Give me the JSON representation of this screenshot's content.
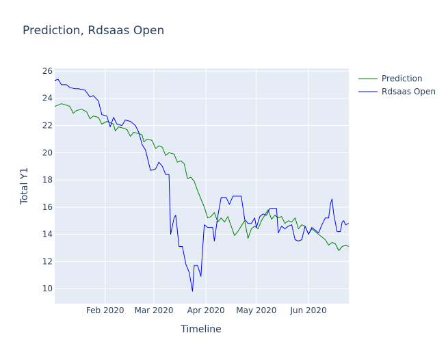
{
  "chart_data": {
    "type": "line",
    "title": "Prediction, Rdsaas Open",
    "xlabel": "Timeline",
    "ylabel": "Total Y1",
    "ylim": [
      8.9,
      26.2
    ],
    "yticks": [
      10,
      12,
      14,
      16,
      18,
      20,
      22,
      24,
      26
    ],
    "xrange": [
      "2020-01-02",
      "2020-06-25"
    ],
    "xticks": [
      {
        "date": "2020-02-01",
        "label": "Feb 2020"
      },
      {
        "date": "2020-03-01",
        "label": "Mar 2020"
      },
      {
        "date": "2020-04-01",
        "label": "Apr 2020"
      },
      {
        "date": "2020-05-01",
        "label": "May 2020"
      },
      {
        "date": "2020-06-01",
        "label": "Jun 2020"
      }
    ],
    "grid": true,
    "legend_position": "top-right",
    "plot_background": "#e5ecf6",
    "series": [
      {
        "name": "Prediction",
        "color": "#008000",
        "points": [
          [
            "2020-01-02",
            23.4
          ],
          [
            "2020-01-04",
            23.5
          ],
          [
            "2020-01-06",
            23.6
          ],
          [
            "2020-01-09",
            23.5
          ],
          [
            "2020-01-11",
            23.4
          ],
          [
            "2020-01-13",
            22.9
          ],
          [
            "2020-01-15",
            23.1
          ],
          [
            "2020-01-18",
            23.2
          ],
          [
            "2020-01-21",
            23.0
          ],
          [
            "2020-01-23",
            22.5
          ],
          [
            "2020-01-25",
            22.7
          ],
          [
            "2020-01-28",
            22.6
          ],
          [
            "2020-01-30",
            22.1
          ],
          [
            "2020-02-02",
            22.3
          ],
          [
            "2020-02-04",
            22.2
          ],
          [
            "2020-02-06",
            22.1
          ],
          [
            "2020-02-07",
            21.6
          ],
          [
            "2020-02-09",
            21.9
          ],
          [
            "2020-02-12",
            21.8
          ],
          [
            "2020-02-14",
            21.7
          ],
          [
            "2020-02-16",
            21.2
          ],
          [
            "2020-02-18",
            21.5
          ],
          [
            "2020-02-21",
            21.4
          ],
          [
            "2020-02-23",
            21.3
          ],
          [
            "2020-02-24",
            20.8
          ],
          [
            "2020-02-26",
            21.0
          ],
          [
            "2020-02-29",
            20.9
          ],
          [
            "2020-03-02",
            20.3
          ],
          [
            "2020-03-04",
            20.5
          ],
          [
            "2020-03-06",
            20.4
          ],
          [
            "2020-03-08",
            19.8
          ],
          [
            "2020-03-10",
            20.0
          ],
          [
            "2020-03-13",
            19.9
          ],
          [
            "2020-03-15",
            19.3
          ],
          [
            "2020-03-17",
            19.4
          ],
          [
            "2020-03-19",
            19.2
          ],
          [
            "2020-03-21",
            18.1
          ],
          [
            "2020-03-23",
            18.2
          ],
          [
            "2020-03-25",
            17.9
          ],
          [
            "2020-03-27",
            17.2
          ],
          [
            "2020-03-29",
            16.6
          ],
          [
            "2020-03-31",
            16.0
          ],
          [
            "2020-04-02",
            15.2
          ],
          [
            "2020-04-04",
            15.3
          ],
          [
            "2020-04-06",
            15.6
          ],
          [
            "2020-04-08",
            14.9
          ],
          [
            "2020-04-10",
            15.2
          ],
          [
            "2020-04-12",
            14.9
          ],
          [
            "2020-04-14",
            15.3
          ],
          [
            "2020-04-16",
            14.6
          ],
          [
            "2020-04-18",
            13.9
          ],
          [
            "2020-04-20",
            14.2
          ],
          [
            "2020-04-22",
            14.6
          ],
          [
            "2020-04-24",
            15.0
          ],
          [
            "2020-04-26",
            13.7
          ],
          [
            "2020-04-28",
            14.4
          ],
          [
            "2020-04-30",
            14.6
          ],
          [
            "2020-05-02",
            14.4
          ],
          [
            "2020-05-04",
            15.0
          ],
          [
            "2020-05-06",
            15.4
          ],
          [
            "2020-05-08",
            15.8
          ],
          [
            "2020-05-10",
            15.1
          ],
          [
            "2020-05-12",
            15.4
          ],
          [
            "2020-05-14",
            15.2
          ],
          [
            "2020-05-16",
            15.3
          ],
          [
            "2020-05-18",
            14.8
          ],
          [
            "2020-05-20",
            15.0
          ],
          [
            "2020-05-22",
            14.9
          ],
          [
            "2020-05-24",
            15.2
          ],
          [
            "2020-05-26",
            14.4
          ],
          [
            "2020-05-28",
            14.7
          ],
          [
            "2020-05-30",
            14.6
          ],
          [
            "2020-06-01",
            14.0
          ],
          [
            "2020-06-03",
            14.4
          ],
          [
            "2020-06-05",
            14.2
          ],
          [
            "2020-06-07",
            14.0
          ],
          [
            "2020-06-09",
            13.8
          ],
          [
            "2020-06-11",
            13.6
          ],
          [
            "2020-06-13",
            13.2
          ],
          [
            "2020-06-15",
            13.4
          ],
          [
            "2020-06-17",
            13.3
          ],
          [
            "2020-06-19",
            12.8
          ],
          [
            "2020-06-21",
            13.1
          ],
          [
            "2020-06-23",
            13.2
          ],
          [
            "2020-06-25",
            13.1
          ]
        ]
      },
      {
        "name": "Rdsaas Open",
        "color": "#0000ff",
        "points": [
          [
            "2020-01-02",
            25.3
          ],
          [
            "2020-01-04",
            25.4
          ],
          [
            "2020-01-06",
            25.0
          ],
          [
            "2020-01-09",
            25.0
          ],
          [
            "2020-01-11",
            24.8
          ],
          [
            "2020-01-14",
            24.7
          ],
          [
            "2020-01-16",
            24.7
          ],
          [
            "2020-01-20",
            24.6
          ],
          [
            "2020-01-23",
            24.1
          ],
          [
            "2020-01-25",
            24.2
          ],
          [
            "2020-01-28",
            23.8
          ],
          [
            "2020-01-30",
            22.8
          ],
          [
            "2020-02-02",
            22.7
          ],
          [
            "2020-02-04",
            21.9
          ],
          [
            "2020-02-06",
            22.6
          ],
          [
            "2020-02-08",
            22.1
          ],
          [
            "2020-02-11",
            22.0
          ],
          [
            "2020-02-13",
            22.4
          ],
          [
            "2020-02-16",
            22.3
          ],
          [
            "2020-02-19",
            22.0
          ],
          [
            "2020-02-21",
            21.5
          ],
          [
            "2020-02-23",
            20.6
          ],
          [
            "2020-02-25",
            20.2
          ],
          [
            "2020-02-27",
            19.2
          ],
          [
            "2020-02-28",
            18.7
          ],
          [
            "2020-03-02",
            18.8
          ],
          [
            "2020-03-04",
            19.3
          ],
          [
            "2020-03-06",
            19.0
          ],
          [
            "2020-03-08",
            18.4
          ],
          [
            "2020-03-10",
            18.4
          ],
          [
            "2020-03-11",
            14.0
          ],
          [
            "2020-03-13",
            15.2
          ],
          [
            "2020-03-14",
            15.4
          ],
          [
            "2020-03-16",
            13.1
          ],
          [
            "2020-03-18",
            13.1
          ],
          [
            "2020-03-20",
            11.8
          ],
          [
            "2020-03-22",
            11.2
          ],
          [
            "2020-03-24",
            9.8
          ],
          [
            "2020-03-25",
            11.7
          ],
          [
            "2020-03-27",
            11.7
          ],
          [
            "2020-03-29",
            10.9
          ],
          [
            "2020-03-30",
            12.9
          ],
          [
            "2020-03-31",
            14.7
          ],
          [
            "2020-04-02",
            14.5
          ],
          [
            "2020-04-05",
            14.5
          ],
          [
            "2020-04-06",
            13.5
          ],
          [
            "2020-04-08",
            15.3
          ],
          [
            "2020-04-10",
            16.7
          ],
          [
            "2020-04-13",
            16.7
          ],
          [
            "2020-04-15",
            16.2
          ],
          [
            "2020-04-17",
            16.8
          ],
          [
            "2020-04-20",
            16.8
          ],
          [
            "2020-04-22",
            16.8
          ],
          [
            "2020-04-24",
            15.1
          ],
          [
            "2020-04-26",
            14.8
          ],
          [
            "2020-04-28",
            14.8
          ],
          [
            "2020-04-30",
            15.2
          ],
          [
            "2020-05-01",
            14.5
          ],
          [
            "2020-05-03",
            15.3
          ],
          [
            "2020-05-05",
            15.5
          ],
          [
            "2020-05-07",
            15.4
          ],
          [
            "2020-05-09",
            15.9
          ],
          [
            "2020-05-11",
            15.9
          ],
          [
            "2020-05-13",
            15.9
          ],
          [
            "2020-05-14",
            14.1
          ],
          [
            "2020-05-16",
            14.6
          ],
          [
            "2020-05-18",
            14.4
          ],
          [
            "2020-05-20",
            14.6
          ],
          [
            "2020-05-22",
            14.7
          ],
          [
            "2020-05-24",
            13.6
          ],
          [
            "2020-05-26",
            13.5
          ],
          [
            "2020-05-28",
            13.6
          ],
          [
            "2020-05-30",
            14.6
          ],
          [
            "2020-06-01",
            14.0
          ],
          [
            "2020-06-03",
            14.5
          ],
          [
            "2020-06-05",
            14.3
          ],
          [
            "2020-06-07",
            14.1
          ],
          [
            "2020-06-09",
            14.7
          ],
          [
            "2020-06-11",
            15.2
          ],
          [
            "2020-06-13",
            15.2
          ],
          [
            "2020-06-14",
            16.2
          ],
          [
            "2020-06-15",
            16.6
          ],
          [
            "2020-06-16",
            15.5
          ],
          [
            "2020-06-18",
            14.2
          ],
          [
            "2020-06-20",
            14.2
          ],
          [
            "2020-06-21",
            14.9
          ],
          [
            "2020-06-22",
            15.0
          ],
          [
            "2020-06-23",
            14.7
          ],
          [
            "2020-06-25",
            14.8
          ]
        ]
      }
    ]
  }
}
